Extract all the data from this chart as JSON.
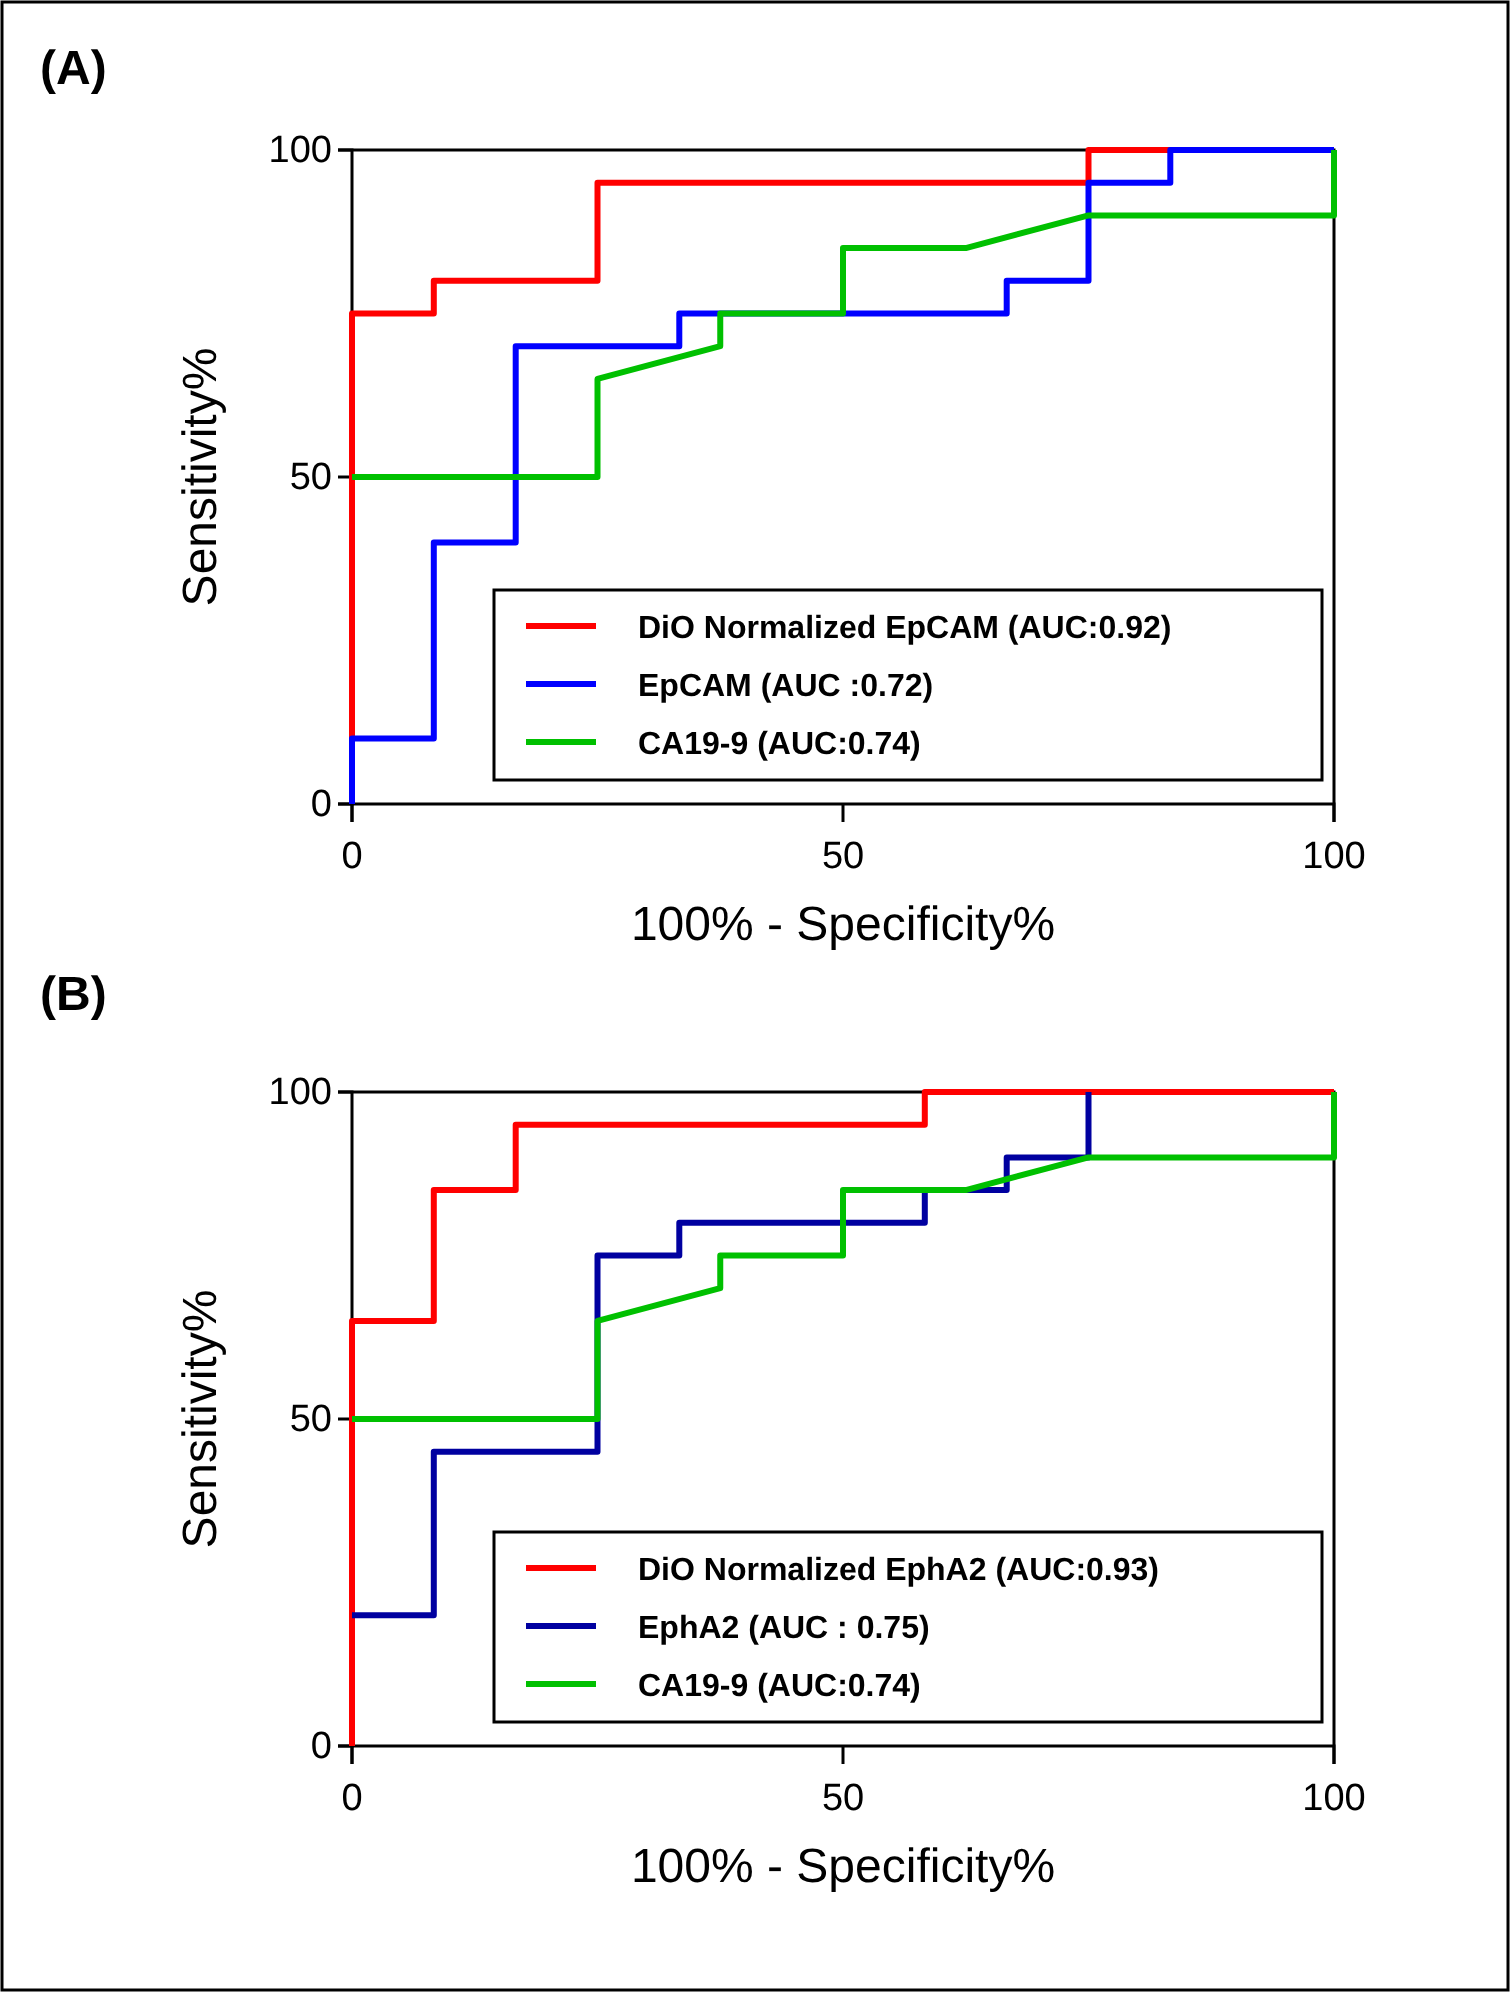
{
  "chart_data": [
    {
      "type": "line",
      "title": "(A)",
      "xlabel": "100% - Specificity%",
      "ylabel": "Sensitivity%",
      "xlim": [
        0,
        100
      ],
      "ylim": [
        0,
        100
      ],
      "xticks": [
        0,
        50,
        100
      ],
      "yticks": [
        0,
        50,
        100
      ],
      "legend": "bottom right",
      "grid": false,
      "marker": "none",
      "line_style": "solid",
      "series": [
        {
          "name": "DiO Normalized EpCAM (AUC:0.92)",
          "color": "#ff0000",
          "x": [
            0,
            0,
            8.33,
            8.33,
            25,
            25,
            75,
            75,
            83.33
          ],
          "values": [
            0,
            75,
            75,
            80,
            80,
            95,
            95,
            100,
            100
          ]
        },
        {
          "name": "EpCAM (AUC :0.72)",
          "color": "#0000ff",
          "x": [
            0,
            0,
            8.33,
            8.33,
            16.67,
            16.67,
            33.33,
            33.33,
            66.67,
            66.67,
            75,
            75,
            83.33,
            83.33,
            100
          ],
          "values": [
            0,
            10,
            10,
            40,
            40,
            70,
            70,
            75,
            75,
            80,
            80,
            95,
            95,
            100,
            100
          ]
        },
        {
          "name": "CA19-9 (AUC:0.74)",
          "color": "#00c000",
          "x": [
            0,
            25,
            25,
            37.5,
            37.5,
            50,
            50,
            62.5,
            75,
            100,
            100
          ],
          "values": [
            50,
            50,
            65,
            70,
            75,
            75,
            85,
            85,
            90,
            90,
            100
          ]
        }
      ]
    },
    {
      "type": "line",
      "title": "(B)",
      "xlabel": "100% - Specificity%",
      "ylabel": "Sensitivity%",
      "xlim": [
        0,
        100
      ],
      "ylim": [
        0,
        100
      ],
      "xticks": [
        0,
        50,
        100
      ],
      "yticks": [
        0,
        50,
        100
      ],
      "legend": "bottom right",
      "grid": false,
      "marker": "none",
      "line_style": "solid",
      "series": [
        {
          "name": "DiO Normalized EphA2 (AUC:0.93)",
          "color": "#ff0000",
          "x": [
            0,
            0,
            8.33,
            8.33,
            16.67,
            16.67,
            58.33,
            58.33,
            100
          ],
          "values": [
            0,
            65,
            65,
            85,
            85,
            95,
            95,
            100,
            100
          ]
        },
        {
          "name": "EphA2 (AUC : 0.75)",
          "color": "#0000a0",
          "x": [
            0,
            8.33,
            8.33,
            25,
            25,
            33.33,
            33.33,
            58.33,
            58.33,
            66.67,
            66.67,
            75,
            75
          ],
          "values": [
            20,
            20,
            45,
            45,
            75,
            75,
            80,
            80,
            85,
            85,
            90,
            90,
            100
          ]
        },
        {
          "name": "CA19-9 (AUC:0.74)",
          "color": "#00c000",
          "x": [
            0,
            25,
            25,
            37.5,
            37.5,
            50,
            50,
            62.5,
            75,
            100,
            100
          ],
          "values": [
            50,
            50,
            65,
            70,
            75,
            75,
            85,
            85,
            90,
            90,
            100
          ]
        }
      ]
    }
  ]
}
